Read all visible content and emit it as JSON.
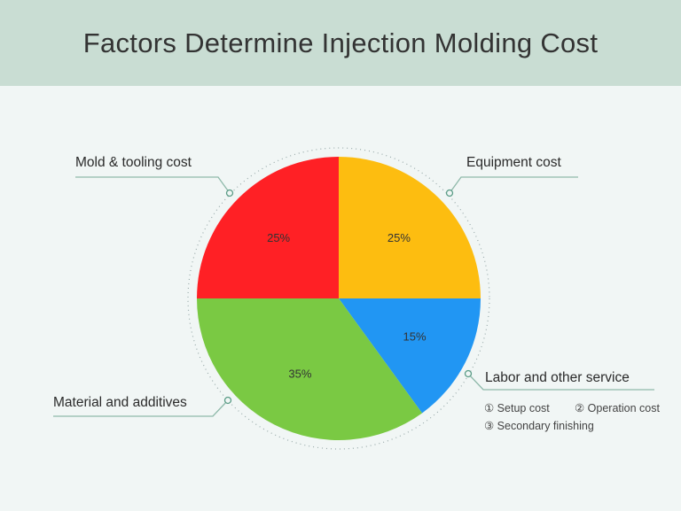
{
  "chart_data": {
    "type": "pie",
    "title": "Factors Determine Injection Molding Cost",
    "slices": [
      {
        "label": "Equipment cost",
        "value": 25,
        "value_label": "25%",
        "color": "#fdbd10"
      },
      {
        "label": "Labor and other service",
        "value": 15,
        "value_label": "15%",
        "color": "#2196f3"
      },
      {
        "label": "Material and additives",
        "value": 35,
        "value_label": "35%",
        "color": "#7ac943"
      },
      {
        "label": "Mold & tooling cost",
        "value": 25,
        "value_label": "25%",
        "color": "#ff2025"
      }
    ],
    "start_angle": "12 o'clock",
    "direction": "clockwise",
    "annotations": {
      "labor_items": [
        "① Setup cost",
        "② Operation cost",
        "③ Secondary finishing"
      ]
    }
  },
  "colors": {
    "header_band": "#c9ddd3",
    "background": "#f1f6f5",
    "leader_line": "#8fb9aa"
  }
}
